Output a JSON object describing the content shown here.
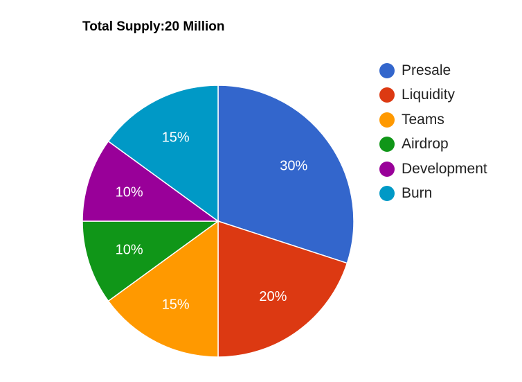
{
  "chart_data": {
    "type": "pie",
    "title": "Total Supply:20 Million",
    "legend_position": "right",
    "start_angle": "top, clockwise",
    "slices": [
      {
        "label": "Presale",
        "value": 30,
        "display": "30%",
        "color": "#3366cc"
      },
      {
        "label": "Liquidity",
        "value": 20,
        "display": "20%",
        "color": "#dc3912"
      },
      {
        "label": "Teams",
        "value": 15,
        "display": "15%",
        "color": "#ff9900"
      },
      {
        "label": "Airdrop",
        "value": 10,
        "display": "10%",
        "color": "#109618"
      },
      {
        "label": "Development",
        "value": 10,
        "display": "10%",
        "color": "#990099"
      },
      {
        "label": "Burn",
        "value": 15,
        "display": "15%",
        "color": "#0099c6"
      }
    ]
  }
}
